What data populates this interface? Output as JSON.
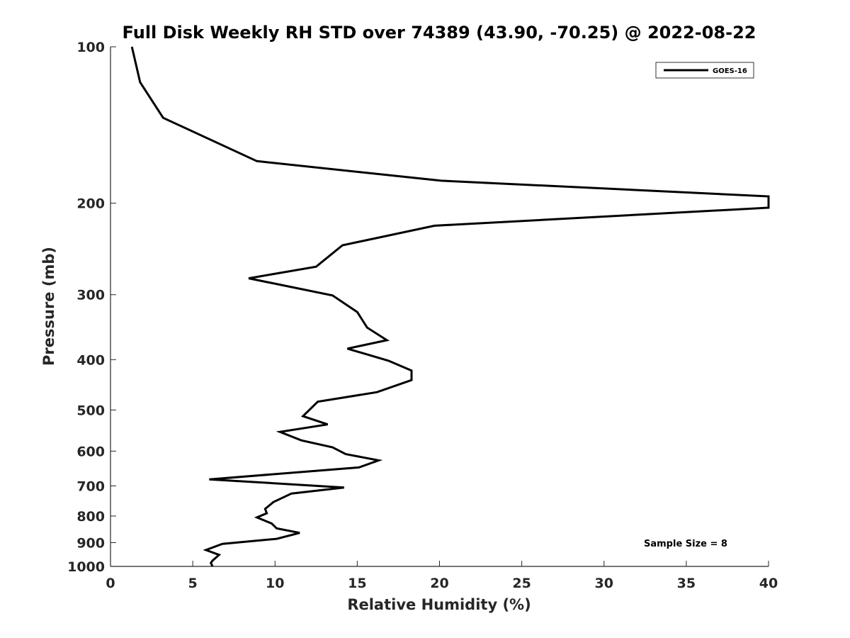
{
  "chart_data": {
    "type": "line",
    "title": "Full Disk Weekly RH STD over 74389 (43.90, -70.25) @ 2022-08-22",
    "xlabel": "Relative Humidity (%)",
    "ylabel": "Pressure (mb)",
    "xlim": [
      0,
      40
    ],
    "ylim": [
      100,
      1000
    ],
    "yscale": "log",
    "y_reversed": true,
    "grid": false,
    "legend_position": "top-right",
    "xticks": [
      0,
      5,
      10,
      15,
      20,
      25,
      30,
      35,
      40
    ],
    "xtick_labels": [
      "0",
      "5",
      "10",
      "15",
      "20",
      "25",
      "30",
      "35",
      "40"
    ],
    "yticks": [
      100,
      200,
      300,
      400,
      500,
      600,
      700,
      800,
      900,
      1000
    ],
    "ytick_labels": [
      "100",
      "200",
      "300",
      "400",
      "500",
      "600",
      "700",
      "800",
      "900",
      "1000"
    ],
    "annotation": "Sample Size = 8",
    "series": [
      {
        "name": "GOES-16",
        "color": "#000000",
        "x": [
          1.3,
          1.8,
          3.2,
          8.9,
          20.1,
          40.0,
          40.0,
          19.7,
          14.1,
          12.5,
          8.4,
          13.5,
          15.0,
          15.6,
          16.8,
          14.4,
          16.9,
          18.3,
          18.3,
          16.2,
          12.6,
          11.7,
          13.2,
          10.3,
          11.6,
          13.5,
          14.3,
          16.3,
          15.1,
          6.0,
          14.2,
          11.0,
          9.9,
          9.4,
          9.5,
          8.9,
          9.8,
          10.1,
          11.5,
          10.1,
          6.8,
          5.8,
          6.6,
          6.2,
          6.1,
          6.2
        ],
        "y": [
          100,
          117,
          137,
          166,
          181,
          194,
          204,
          221,
          241,
          265,
          279,
          301,
          324,
          347,
          367,
          381,
          402,
          420,
          438,
          462,
          482,
          514,
          533,
          551,
          572,
          590,
          608,
          625,
          645,
          680,
          705,
          724,
          752,
          775,
          790,
          805,
          827,
          845,
          862,
          885,
          905,
          930,
          950,
          975,
          985,
          1000
        ]
      }
    ]
  }
}
